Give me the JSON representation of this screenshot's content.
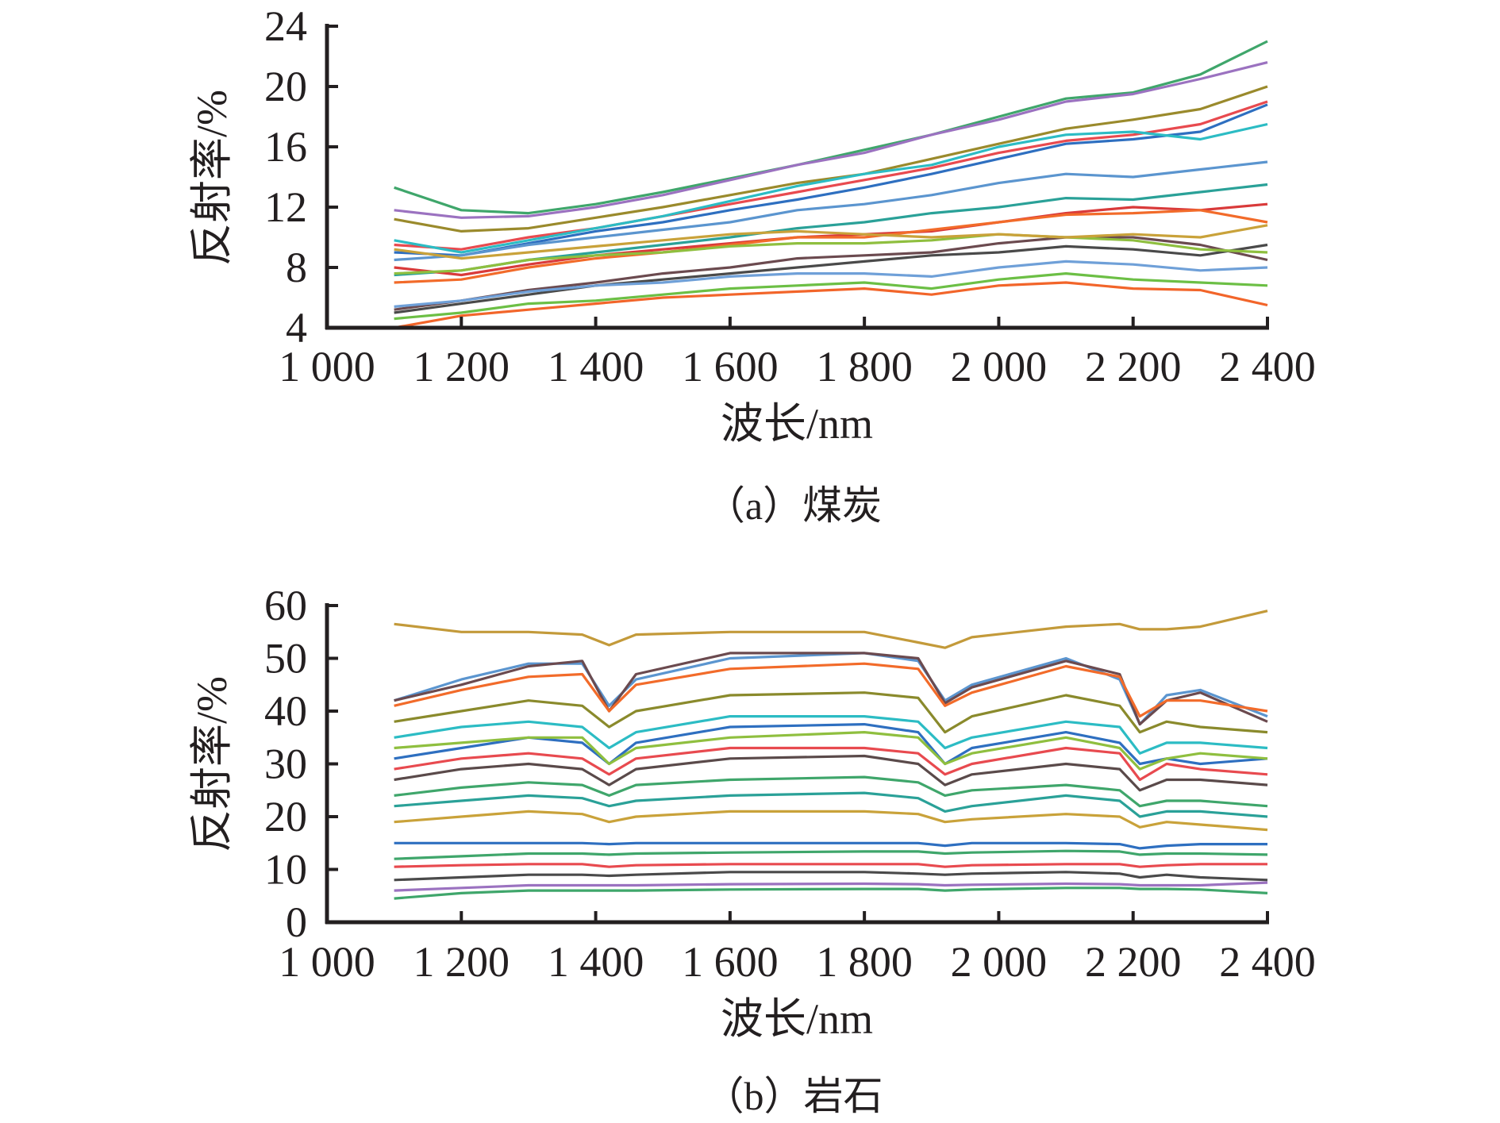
{
  "chart_data": [
    {
      "type": "line",
      "caption": "（a）煤炭",
      "xlabel": "波长/nm",
      "ylabel": "反射率/%",
      "xlim": [
        1000,
        2400
      ],
      "ylim": [
        4,
        24
      ],
      "xticks": [
        1000,
        1200,
        1400,
        1600,
        1800,
        2000,
        2200,
        2400
      ],
      "xtick_labels": [
        "1 000",
        "1 200",
        "1 400",
        "1 600",
        "1 800",
        "2 000",
        "2 200",
        "2 400"
      ],
      "yticks": [
        4,
        8,
        12,
        16,
        20,
        24
      ],
      "ytick_labels": [
        "4",
        "8",
        "12",
        "16",
        "20",
        "24"
      ],
      "grid": false,
      "legend": "none",
      "x": [
        1100,
        1200,
        1300,
        1400,
        1500,
        1600,
        1700,
        1800,
        1900,
        2000,
        2100,
        2200,
        2300,
        2400
      ],
      "series": [
        {
          "color": "#3fa66b",
          "values": [
            13.3,
            11.8,
            11.6,
            12.2,
            13.0,
            13.9,
            14.8,
            15.8,
            16.8,
            18.0,
            19.2,
            19.6,
            20.8,
            23.0
          ]
        },
        {
          "color": "#9b72c0",
          "values": [
            11.8,
            11.3,
            11.4,
            12.0,
            12.8,
            13.8,
            14.8,
            15.6,
            16.8,
            17.8,
            19.0,
            19.5,
            20.5,
            21.6
          ]
        },
        {
          "color": "#9a8a2c",
          "values": [
            11.2,
            10.4,
            10.6,
            11.3,
            12.0,
            12.8,
            13.6,
            14.2,
            15.2,
            16.2,
            17.2,
            17.8,
            18.5,
            20.0
          ]
        },
        {
          "color": "#e84a4f",
          "values": [
            9.5,
            9.2,
            10.0,
            10.6,
            11.4,
            12.2,
            13.0,
            13.8,
            14.6,
            15.6,
            16.4,
            16.8,
            17.5,
            19.0
          ]
        },
        {
          "color": "#2e6fc0",
          "values": [
            9.0,
            8.8,
            9.6,
            10.4,
            11.0,
            11.8,
            12.5,
            13.3,
            14.2,
            15.2,
            16.2,
            16.5,
            17.0,
            18.8
          ]
        },
        {
          "color": "#5b95cf",
          "values": [
            8.5,
            8.8,
            9.5,
            10.0,
            10.5,
            11.0,
            11.8,
            12.2,
            12.8,
            13.6,
            14.2,
            14.0,
            14.5,
            15.0
          ]
        },
        {
          "color": "#2cbcc4",
          "values": [
            9.8,
            9.0,
            9.8,
            10.6,
            11.4,
            12.4,
            13.4,
            14.2,
            14.8,
            16.0,
            16.8,
            17.0,
            16.5,
            17.5
          ]
        },
        {
          "color": "#2aa198",
          "values": [
            7.5,
            7.8,
            8.5,
            9.0,
            9.5,
            10.0,
            10.6,
            11.0,
            11.6,
            12.0,
            12.6,
            12.5,
            13.0,
            13.5
          ]
        },
        {
          "color": "#d93a3a",
          "values": [
            8.0,
            7.5,
            8.2,
            8.8,
            9.2,
            9.6,
            10.0,
            10.2,
            10.4,
            11.0,
            11.6,
            12.0,
            11.8,
            12.2
          ]
        },
        {
          "color": "#f26b2a",
          "values": [
            7.0,
            7.2,
            8.0,
            8.6,
            9.0,
            9.5,
            10.0,
            10.0,
            10.5,
            11.0,
            11.5,
            11.6,
            11.8,
            11.0
          ]
        },
        {
          "color": "#6b4a4f",
          "values": [
            5.2,
            5.8,
            6.5,
            7.0,
            7.6,
            8.0,
            8.6,
            8.8,
            9.0,
            9.6,
            10.0,
            10.0,
            9.5,
            8.5
          ]
        },
        {
          "color": "#4a4a4a",
          "values": [
            5.0,
            5.6,
            6.2,
            6.8,
            7.2,
            7.6,
            8.0,
            8.4,
            8.8,
            9.0,
            9.4,
            9.2,
            8.8,
            9.5
          ]
        },
        {
          "color": "#6fa0d8",
          "values": [
            5.4,
            5.8,
            6.4,
            6.8,
            7.0,
            7.4,
            7.6,
            7.6,
            7.4,
            8.0,
            8.4,
            8.2,
            7.8,
            8.0
          ]
        },
        {
          "color": "#6cbf45",
          "values": [
            4.6,
            5.0,
            5.6,
            5.8,
            6.2,
            6.6,
            6.8,
            7.0,
            6.6,
            7.2,
            7.6,
            7.2,
            7.0,
            6.8
          ]
        },
        {
          "color": "#f2652a",
          "values": [
            4.0,
            4.8,
            5.2,
            5.6,
            6.0,
            6.2,
            6.4,
            6.6,
            6.2,
            6.8,
            7.0,
            6.6,
            6.5,
            5.5
          ]
        },
        {
          "color": "#8fbf3f",
          "values": [
            7.6,
            7.8,
            8.5,
            8.8,
            9.0,
            9.4,
            9.6,
            9.6,
            9.8,
            10.2,
            10.0,
            9.8,
            9.2,
            9.0
          ]
        },
        {
          "color": "#c9a23a",
          "values": [
            9.2,
            8.6,
            9.0,
            9.4,
            9.8,
            10.2,
            10.4,
            10.2,
            10.0,
            10.2,
            10.0,
            10.2,
            10.0,
            10.8
          ]
        }
      ]
    },
    {
      "type": "line",
      "caption": "（b）岩石",
      "xlabel": "波长/nm",
      "ylabel": "反射率/%",
      "xlim": [
        1000,
        2400
      ],
      "ylim": [
        0,
        60
      ],
      "xticks": [
        1000,
        1200,
        1400,
        1600,
        1800,
        2000,
        2200,
        2400
      ],
      "xtick_labels": [
        "1 000",
        "1 200",
        "1 400",
        "1 600",
        "1 800",
        "2 000",
        "2 200",
        "2 400"
      ],
      "yticks": [
        0,
        10,
        20,
        30,
        40,
        50,
        60
      ],
      "ytick_labels": [
        "0",
        "10",
        "20",
        "30",
        "40",
        "50",
        "60"
      ],
      "grid": false,
      "legend": "none",
      "x": [
        1100,
        1200,
        1300,
        1380,
        1420,
        1460,
        1600,
        1800,
        1880,
        1920,
        1960,
        2100,
        2180,
        2210,
        2250,
        2300,
        2400
      ],
      "series": [
        {
          "color": "#c39a3a",
          "values": [
            56.5,
            55,
            55,
            54.5,
            52.5,
            54.5,
            55,
            55,
            53,
            52,
            54,
            56,
            56.5,
            55.5,
            55.5,
            56,
            59
          ]
        },
        {
          "color": "#5b95cf",
          "values": [
            42,
            46,
            49,
            49,
            41,
            46,
            50,
            51,
            49.5,
            42,
            45,
            50,
            46,
            37.5,
            43,
            44,
            39
          ]
        },
        {
          "color": "#6b4a4f",
          "values": [
            42,
            45,
            48.5,
            49.5,
            40,
            47,
            51,
            51,
            50,
            41.5,
            44.5,
            49.5,
            47,
            37.5,
            42,
            43.5,
            38
          ]
        },
        {
          "color": "#f26b2a",
          "values": [
            41,
            44,
            46.5,
            47,
            40,
            45,
            48,
            49,
            48,
            41,
            43.5,
            48.5,
            46.5,
            39,
            42,
            42,
            40
          ]
        },
        {
          "color": "#8a8a2c",
          "values": [
            38,
            40,
            42,
            41,
            37,
            40,
            43,
            43.5,
            42.5,
            36,
            39,
            43,
            41,
            36,
            38,
            37,
            36
          ]
        },
        {
          "color": "#2cbcc4",
          "values": [
            35,
            37,
            38,
            37,
            33,
            36,
            39,
            39,
            38,
            33,
            35,
            38,
            37,
            32,
            34,
            34,
            33
          ]
        },
        {
          "color": "#2e6fc0",
          "values": [
            31,
            33,
            35,
            34,
            30,
            34,
            37,
            37.5,
            36,
            30,
            33,
            36,
            34,
            30,
            31,
            30,
            31
          ]
        },
        {
          "color": "#e84a4f",
          "values": [
            29,
            31,
            32,
            31,
            28,
            31,
            33,
            33,
            32,
            28,
            30,
            33,
            32,
            27,
            30,
            29,
            28
          ]
        },
        {
          "color": "#8fbf3f",
          "values": [
            33,
            34,
            35,
            35,
            30,
            33,
            35,
            36,
            35,
            30,
            32,
            35,
            33,
            29,
            31,
            32,
            31
          ]
        },
        {
          "color": "#5a4a4a",
          "values": [
            27,
            29,
            30,
            29,
            26,
            29,
            31,
            31.5,
            30,
            26,
            28,
            30,
            29,
            25,
            27,
            27,
            26
          ]
        },
        {
          "color": "#3fa66b",
          "values": [
            24,
            25.5,
            26.5,
            26,
            24,
            26,
            27,
            27.5,
            26.5,
            24,
            25,
            26,
            25,
            22,
            23,
            23,
            22
          ]
        },
        {
          "color": "#2aa198",
          "values": [
            22,
            23,
            24,
            23.5,
            22,
            23,
            24,
            24.5,
            23.5,
            21,
            22,
            24,
            23,
            20,
            21,
            21,
            20
          ]
        },
        {
          "color": "#c9a23a",
          "values": [
            19,
            20,
            21,
            20.5,
            19,
            20,
            21,
            21,
            20.5,
            19,
            19.5,
            20.5,
            20,
            18,
            19,
            18.5,
            17.5
          ]
        },
        {
          "color": "#2e6fc0",
          "values": [
            15,
            15,
            15,
            15,
            14.8,
            15,
            15,
            15,
            15,
            14.5,
            15,
            15,
            14.8,
            14,
            14.5,
            14.8,
            14.8
          ]
        },
        {
          "color": "#3fa66b",
          "values": [
            12,
            12.5,
            13,
            13,
            12.8,
            13,
            13.2,
            13.4,
            13.4,
            13,
            13.2,
            13.5,
            13.4,
            12.8,
            13,
            13,
            12.8
          ]
        },
        {
          "color": "#e84a4f",
          "values": [
            10.5,
            10.8,
            11,
            11,
            10.5,
            10.8,
            11,
            11,
            11,
            10.5,
            10.8,
            11,
            11,
            10.5,
            10.8,
            11,
            11
          ]
        },
        {
          "color": "#4a4a4a",
          "values": [
            8,
            8.5,
            9,
            9,
            8.8,
            9,
            9.5,
            9.5,
            9.2,
            9,
            9.2,
            9.5,
            9.2,
            8.5,
            9,
            8.5,
            8
          ]
        },
        {
          "color": "#9b72c0",
          "values": [
            6,
            6.5,
            7,
            7,
            7,
            7,
            7.2,
            7.3,
            7.2,
            7,
            7.1,
            7.3,
            7.2,
            7,
            7,
            7,
            7.5
          ]
        },
        {
          "color": "#3fa66b",
          "values": [
            4.5,
            5.5,
            6,
            6,
            6,
            6,
            6.2,
            6.3,
            6.3,
            6,
            6.2,
            6.5,
            6.5,
            6.3,
            6.3,
            6.2,
            5.5
          ]
        }
      ]
    }
  ]
}
